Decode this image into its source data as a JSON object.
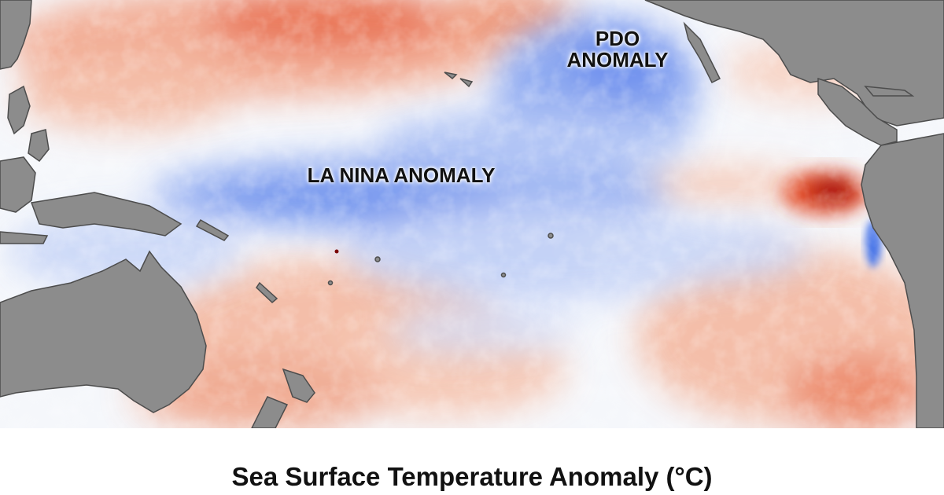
{
  "map": {
    "labels": {
      "pdo_line1": "PDO",
      "pdo_line2": "ANOMALY",
      "la_nina": "LA NINA ANOMALY"
    },
    "colors": {
      "land": "#8c8c8c",
      "coast": "#4d4d4d",
      "neutral_ocean": "#f5f7fb",
      "cool_anomaly": "#3d6ee6",
      "warm_anomaly": "#e8603a",
      "hot_spot": "#9e0808"
    }
  },
  "caption": "Sea Surface Temperature Anomaly (°C)"
}
